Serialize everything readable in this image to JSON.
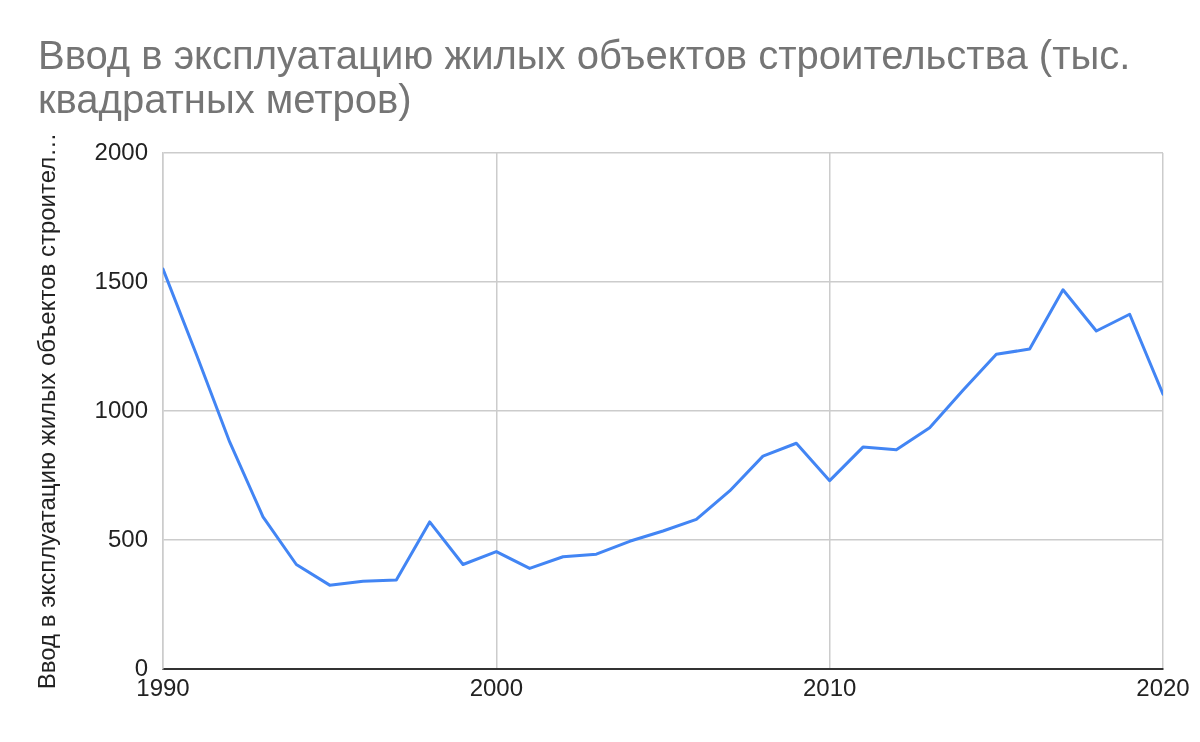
{
  "chart_data": {
    "type": "line",
    "title": "Ввод в эксплуатацию жилых объектов строительства (тыс. квадратных метров)",
    "ylabel": "Ввод в эксплуатацию жилых объектов строител…",
    "x": [
      1990,
      1991,
      1992,
      1993,
      1994,
      1995,
      1996,
      1997,
      1998,
      1999,
      2000,
      2001,
      2002,
      2003,
      2004,
      2005,
      2006,
      2007,
      2008,
      2009,
      2010,
      2011,
      2012,
      2013,
      2014,
      2015,
      2016,
      2017,
      2018,
      2019,
      2020
    ],
    "series": [
      {
        "color": "#4285f4",
        "values": [
          1550,
          1220,
          880,
          590,
          405,
          325,
          340,
          345,
          570,
          405,
          455,
          390,
          435,
          445,
          495,
          535,
          580,
          690,
          825,
          875,
          730,
          860,
          850,
          935,
          1080,
          1220,
          1240,
          1470,
          1310,
          1375,
          1065
        ]
      }
    ],
    "xlim": [
      1990,
      2020
    ],
    "xticks": [
      1990,
      2000,
      2010,
      2020
    ],
    "ylim": [
      0,
      2000
    ],
    "yticks": [
      0,
      500,
      1000,
      1500,
      2000
    ],
    "grid": true
  }
}
